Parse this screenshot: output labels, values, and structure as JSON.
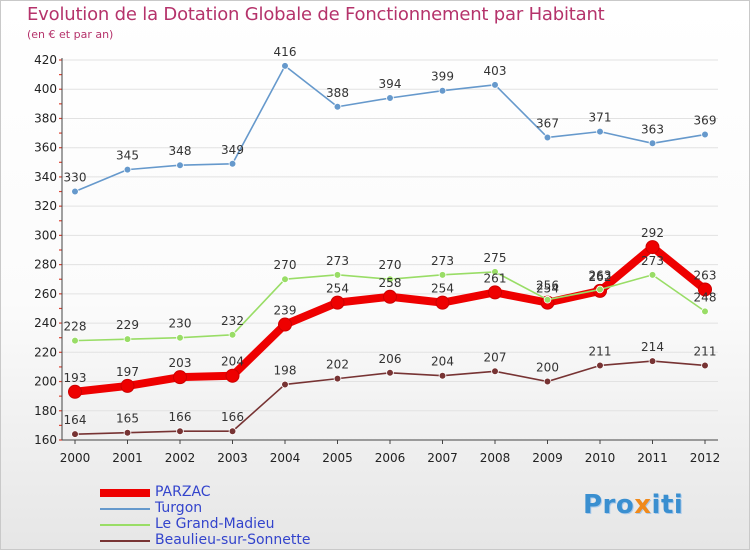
{
  "chart_data": {
    "type": "line",
    "title": "Evolution de la Dotation Globale de Fonctionnement par Habitant",
    "subtitle": "(en € et par an)",
    "categories": [
      "2000",
      "2001",
      "2002",
      "2003",
      "2004",
      "2005",
      "2006",
      "2007",
      "2008",
      "2009",
      "2010",
      "2011",
      "2012"
    ],
    "ylim": [
      160,
      420
    ],
    "yticks": [
      160,
      180,
      200,
      220,
      240,
      260,
      280,
      300,
      320,
      340,
      360,
      380,
      400,
      420
    ],
    "series": [
      {
        "name": "PARZAC",
        "color": "#ee0000",
        "values": [
          193,
          197,
          203,
          204,
          239,
          254,
          258,
          254,
          261,
          254,
          262,
          292,
          263
        ]
      },
      {
        "name": "Turgon",
        "color": "#6699cc",
        "values": [
          330,
          345,
          348,
          349,
          416,
          388,
          394,
          399,
          403,
          367,
          371,
          363,
          369
        ]
      },
      {
        "name": "Le Grand-Madieu",
        "color": "#99dd66",
        "values": [
          228,
          229,
          230,
          232,
          270,
          273,
          270,
          273,
          275,
          256,
          263,
          273,
          248
        ]
      },
      {
        "name": "Beaulieu-sur-Sonnette",
        "color": "#773333",
        "values": [
          164,
          165,
          166,
          166,
          198,
          202,
          206,
          204,
          207,
          200,
          211,
          214,
          211
        ]
      }
    ]
  },
  "logo": {
    "part1": "Pro",
    "part2": "x",
    "part3": "iti"
  }
}
